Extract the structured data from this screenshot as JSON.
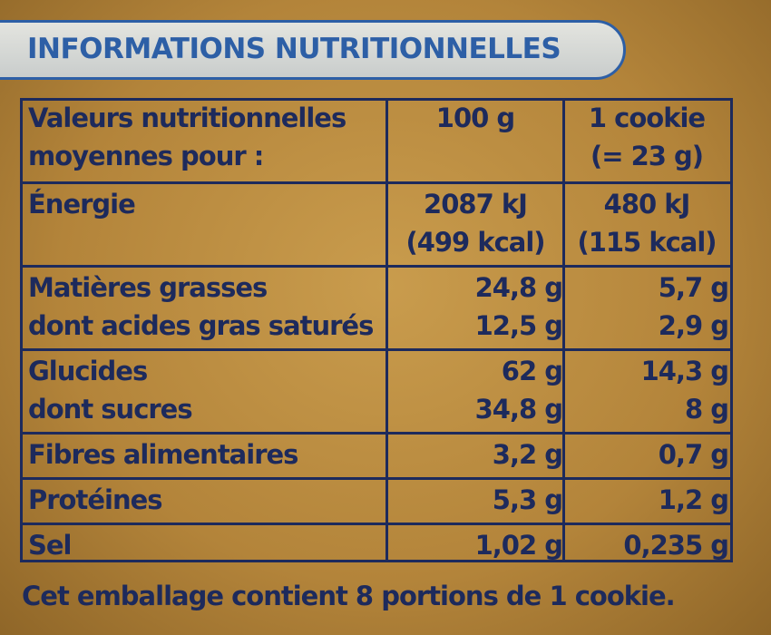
{
  "header": {
    "title": "INFORMATIONS NUTRITIONNELLES"
  },
  "table": {
    "groups": [
      [
        [
          [
            "Valeurs nutritionnelles",
            "moyennes pour :"
          ],
          "100 g",
          [
            "1 cookie",
            "(= 23 g)"
          ]
        ]
      ],
      [
        [
          "Énergie",
          [
            "2087 kJ",
            "(499 kcal)"
          ],
          [
            "480 kJ",
            "(115 kcal)"
          ]
        ]
      ],
      [
        [
          "Matières grasses",
          "24,8 g",
          "5,7 g"
        ],
        [
          "dont acides gras saturés",
          "12,5 g",
          "2,9 g"
        ]
      ],
      [
        [
          "Glucides",
          "62 g",
          "14,3 g"
        ],
        [
          "dont sucres",
          "34,8 g",
          "8 g"
        ]
      ],
      [
        [
          "Fibres alimentaires",
          "3,2 g",
          "0,7 g"
        ]
      ],
      [
        [
          "Protéines",
          "5,3 g",
          "1,2 g"
        ]
      ],
      [
        [
          "Sel",
          "1,02 g",
          "0,235 g"
        ]
      ]
    ]
  },
  "footer": {
    "text": "Cet emballage contient 8 portions de 1 cookie."
  }
}
